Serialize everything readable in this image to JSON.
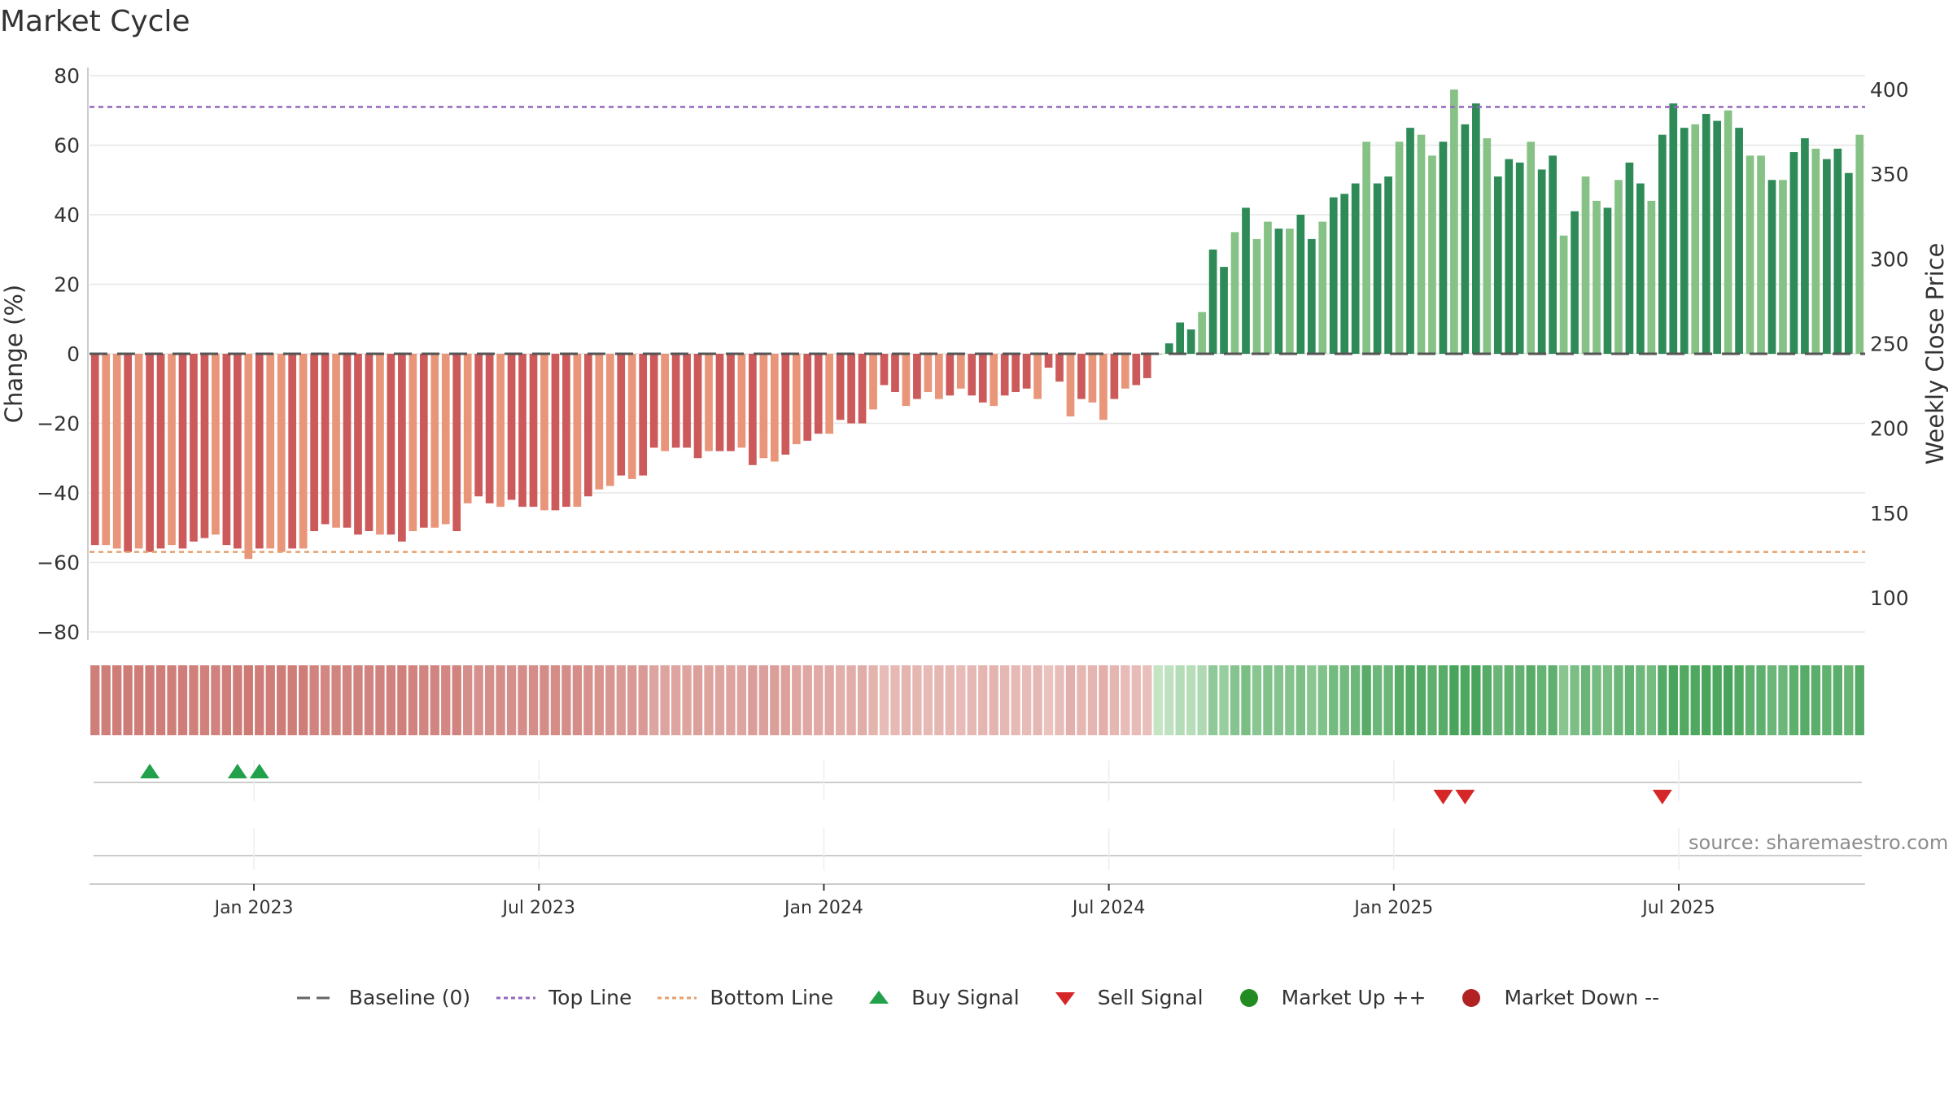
{
  "chart_data": {
    "type": "bar",
    "title": "Market Cycle",
    "ylabel": "Change (%)",
    "y2label": "Weekly Close Price",
    "ylim": [
      -80,
      80
    ],
    "y2lim": [
      80,
      420
    ],
    "yticks": [
      80,
      60,
      40,
      20,
      0,
      -20,
      -40,
      -60,
      -80
    ],
    "y2ticks": [
      400,
      350,
      300,
      250,
      200,
      150,
      100
    ],
    "xticks": [
      "Jan 2023",
      "Jul 2023",
      "Jan 2024",
      "Jul 2024",
      "Jan 2025",
      "Jul 2025"
    ],
    "top_line": 71,
    "bottom_line": -57,
    "baseline": 0,
    "grid": true,
    "legend_position": "bottom",
    "series": [
      {
        "values": [
          -55,
          -55,
          -56,
          -57,
          -56,
          -57,
          -56,
          -55,
          -56,
          -54,
          -53,
          -52,
          -55,
          -56,
          -59,
          -56,
          -56,
          -57,
          -56,
          -56,
          -51,
          -49,
          -50,
          -50,
          -52,
          -51,
          -52,
          -52,
          -54,
          -51,
          -50,
          -50,
          -49,
          -51,
          -43,
          -41,
          -43,
          -44,
          -42,
          -44,
          -44,
          -45,
          -45,
          -44,
          -44,
          -41,
          -39,
          -38,
          -35,
          -36,
          -35,
          -27,
          -28,
          -27,
          -27,
          -30,
          -28,
          -28,
          -28,
          -27,
          -32,
          -30,
          -31,
          -29,
          -26,
          -25,
          -23,
          -23,
          -19,
          -20,
          -20,
          -16,
          -9,
          -11,
          -15,
          -13,
          -11,
          -13,
          -12,
          -10,
          -12,
          -14,
          -15,
          -12,
          -11,
          -10,
          -13,
          -4,
          -8,
          -18,
          -13,
          -14,
          -19,
          -13,
          -10,
          -9,
          -7,
          0,
          3,
          9,
          7,
          12,
          30,
          25,
          35,
          42,
          33,
          38,
          36,
          36,
          40,
          33,
          38,
          45,
          46,
          49,
          61,
          49,
          51,
          61,
          65,
          63,
          57,
          61,
          76,
          66,
          72,
          62,
          51,
          56,
          55,
          61,
          53,
          57,
          34,
          41,
          51,
          44,
          42,
          50,
          55,
          49,
          44,
          63,
          72,
          65,
          66,
          69,
          67,
          70,
          65,
          57,
          57,
          50,
          50,
          58,
          62,
          59,
          56,
          59,
          52,
          63
        ],
        "markers": {
          "buy_signal_indices": [
            5,
            13,
            15
          ],
          "sell_signal_indices": [
            123,
            125,
            143
          ]
        }
      }
    ],
    "legend": [
      {
        "label": "Baseline (0)",
        "style": "dashed",
        "color": "#666666"
      },
      {
        "label": "Top Line",
        "style": "dotted",
        "color": "#9467bd"
      },
      {
        "label": "Bottom Line",
        "style": "dotted",
        "color": "#e5a06a"
      },
      {
        "label": "Buy Signal",
        "style": "triangle-up",
        "color": "#22a04a"
      },
      {
        "label": "Sell Signal",
        "style": "triangle-down",
        "color": "#d62728"
      },
      {
        "label": "Market Up ++",
        "style": "circle",
        "color": "#228b22"
      },
      {
        "label": "Market Down --",
        "style": "circle",
        "color": "#b22222"
      }
    ]
  },
  "source": "source: sharemaestro.com"
}
